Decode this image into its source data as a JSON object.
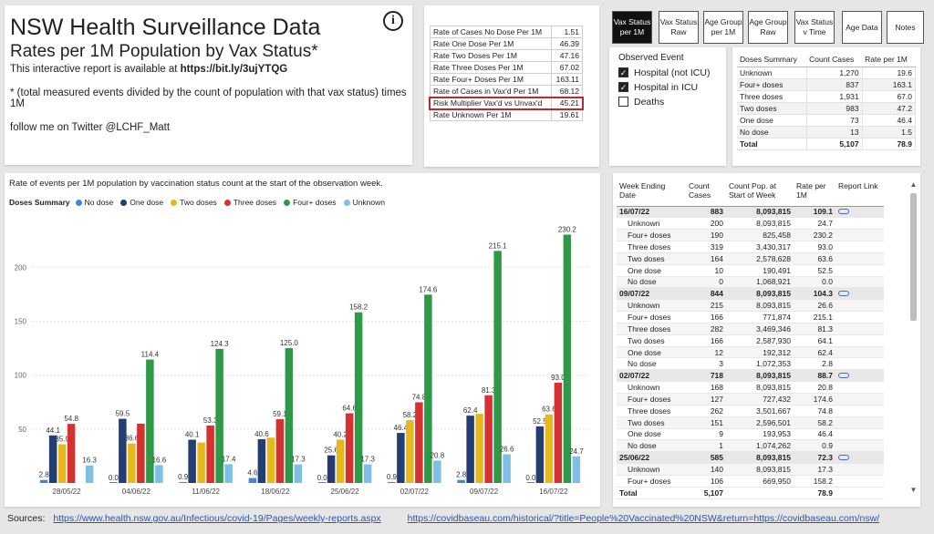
{
  "header": {
    "title": "NSW Health Surveillance Data",
    "subtitle": "Rates per 1M Population by Vax Status*",
    "report_prefix": "This interactive report is available at",
    "report_link": "https://bit.ly/3ujYTQG",
    "footnote": "* (total measured events divided by the count of population with that vax status) times 1M",
    "twitter": "follow me on Twitter @LCHF_Matt",
    "info_icon": "i"
  },
  "rates": [
    {
      "label": "Rate of Cases No Dose Per 1M",
      "value": "1.51"
    },
    {
      "label": "Rate One Dose Per 1M",
      "value": "46.39"
    },
    {
      "label": "Rate Two Doses Per 1M",
      "value": "47.16"
    },
    {
      "label": "Rate Three Doses Per 1M",
      "value": "67.02"
    },
    {
      "label": "Rate Four+ Doses Per 1M",
      "value": "163.11"
    },
    {
      "label": "Rate of Cases in Vax'd Per 1M",
      "value": "68.12"
    },
    {
      "label": "Risk Multiplier Vax'd vs Unvax'd",
      "value": "45.21",
      "highlight": true
    },
    {
      "label": "Rate Unknown Per 1M",
      "value": "19.61"
    }
  ],
  "nav": [
    {
      "label": "Vax Status per 1M",
      "active": true
    },
    {
      "label": "Vax Status Raw",
      "active": false
    },
    {
      "label": "Age Group per 1M",
      "active": false
    },
    {
      "label": "Age Group Raw",
      "active": false
    },
    {
      "label": "Vax Status v Time",
      "active": false
    },
    {
      "label": "Age Data",
      "active": false
    },
    {
      "label": "Notes",
      "active": false
    }
  ],
  "observed": {
    "label": "Observed Event",
    "options": [
      {
        "label": "Hospital (not ICU)",
        "checked": true
      },
      {
        "label": "Hospital in ICU",
        "checked": true
      },
      {
        "label": "Deaths",
        "checked": false
      }
    ],
    "check_glyph": "✓"
  },
  "doses_summary": {
    "headers": [
      "Doses Summary",
      "Count Cases",
      "Rate per 1M"
    ],
    "rows": [
      [
        "Unknown",
        "1,270",
        "19.6"
      ],
      [
        "Four+ doses",
        "837",
        "163.1"
      ],
      [
        "Three doses",
        "1,931",
        "67.0"
      ],
      [
        "Two doses",
        "983",
        "47.2"
      ],
      [
        "One dose",
        "73",
        "46.4"
      ],
      [
        "No dose",
        "13",
        "1.5"
      ]
    ],
    "total": [
      "Total",
      "5,107",
      "78.9"
    ]
  },
  "chart_title": "Rate of events per 1M population by vaccination status count at the start of the observation week.",
  "legend_title": "Doses Summary",
  "colors": {
    "No dose": "#3c8ad6",
    "One dose": "#253d73",
    "Two doses": "#e6b81e",
    "Three doses": "#d63131",
    "Four+ doses": "#2e9a47",
    "Unknown": "#7fbfe6"
  },
  "chart_data": {
    "type": "bar",
    "title": "Rate of events per 1M population by vaccination status count at the start of the observation week.",
    "categories": [
      "28/05/22",
      "04/06/22",
      "11/06/22",
      "18/06/22",
      "25/06/22",
      "02/07/22",
      "09/07/22",
      "16/07/22"
    ],
    "series": [
      {
        "name": "No dose",
        "values": [
          2.8,
          0.0,
          0.9,
          4.6,
          0.0,
          0.9,
          2.8,
          0.0
        ],
        "labels": [
          "2.8",
          "0.0",
          "0.9",
          "4.6",
          "0.0",
          "0.9",
          "2.8",
          "0.0"
        ]
      },
      {
        "name": "One dose",
        "values": [
          44.1,
          59.5,
          40.1,
          40.6,
          25.6,
          46.4,
          62.4,
          52.5
        ],
        "labels": [
          "44.1",
          "59.5",
          "40.1",
          "40.6",
          "25.6",
          "46.4",
          "62.4",
          "52.5"
        ]
      },
      {
        "name": "Two doses",
        "values": [
          35.9,
          36.6,
          37.5,
          42.0,
          40.2,
          58.2,
          64.1,
          63.6
        ],
        "labels": [
          "35.9",
          "36.6",
          "",
          "",
          "40.2",
          "58.2",
          "",
          "63.6"
        ]
      },
      {
        "name": "Three doses",
        "values": [
          54.8,
          55.0,
          53.3,
          59.1,
          64.6,
          74.8,
          81.3,
          93.0
        ],
        "labels": [
          "54.8",
          "",
          "53.3",
          "59.1",
          "64.6",
          "74.8",
          "81.3",
          "93.0"
        ]
      },
      {
        "name": "Four+ doses",
        "values": [
          0,
          114.4,
          124.3,
          125.0,
          158.2,
          174.6,
          215.1,
          230.2
        ],
        "labels": [
          "",
          "114.4",
          "124.3",
          "125.0",
          "158.2",
          "174.6",
          "215.1",
          "230.2"
        ]
      },
      {
        "name": "Unknown",
        "values": [
          16.3,
          16.6,
          17.4,
          17.3,
          17.3,
          20.8,
          26.6,
          24.7
        ],
        "labels": [
          "16.3",
          "16.6",
          "17.4",
          "17.3",
          "17.3",
          "20.8",
          "26.6",
          "24.7"
        ]
      }
    ],
    "yticks": [
      50,
      100,
      150,
      200
    ],
    "ylim": [
      0,
      245
    ]
  },
  "weekly": {
    "headers": [
      "Week Ending Date",
      "Count Cases",
      "Count Pop. at Start of Week",
      "Rate per 1M",
      "Report Link"
    ],
    "groups": [
      {
        "week": "16/07/22",
        "cases": "883",
        "pop": "8,093,815",
        "rate": "109.1",
        "link": true,
        "rows": [
          [
            "Unknown",
            "200",
            "8,093,815",
            "24.7"
          ],
          [
            "Four+ doses",
            "190",
            "825,458",
            "230.2"
          ],
          [
            "Three doses",
            "319",
            "3,430,317",
            "93.0"
          ],
          [
            "Two doses",
            "164",
            "2,578,628",
            "63.6"
          ],
          [
            "One dose",
            "10",
            "190,491",
            "52.5"
          ],
          [
            "No dose",
            "0",
            "1,068,921",
            "0.0"
          ]
        ]
      },
      {
        "week": "09/07/22",
        "cases": "844",
        "pop": "8,093,815",
        "rate": "104.3",
        "link": true,
        "rows": [
          [
            "Unknown",
            "215",
            "8,093,815",
            "26.6"
          ],
          [
            "Four+ doses",
            "166",
            "771,874",
            "215.1"
          ],
          [
            "Three doses",
            "282",
            "3,469,346",
            "81.3"
          ],
          [
            "Two doses",
            "166",
            "2,587,930",
            "64.1"
          ],
          [
            "One dose",
            "12",
            "192,312",
            "62.4"
          ],
          [
            "No dose",
            "3",
            "1,072,353",
            "2.8"
          ]
        ]
      },
      {
        "week": "02/07/22",
        "cases": "718",
        "pop": "8,093,815",
        "rate": "88.7",
        "link": true,
        "rows": [
          [
            "Unknown",
            "168",
            "8,093,815",
            "20.8"
          ],
          [
            "Four+ doses",
            "127",
            "727,432",
            "174.6"
          ],
          [
            "Three doses",
            "262",
            "3,501,667",
            "74.8"
          ],
          [
            "Two doses",
            "151",
            "2,596,501",
            "58.2"
          ],
          [
            "One dose",
            "9",
            "193,953",
            "46.4"
          ],
          [
            "No dose",
            "1",
            "1,074,262",
            "0.9"
          ]
        ]
      },
      {
        "week": "25/06/22",
        "cases": "585",
        "pop": "8,093,815",
        "rate": "72.3",
        "link": true,
        "rows": [
          [
            "Unknown",
            "140",
            "8,093,815",
            "17.3"
          ],
          [
            "Four+ doses",
            "106",
            "669,950",
            "158.2"
          ]
        ]
      }
    ],
    "total": [
      "Total",
      "5,107",
      "",
      "78.9"
    ],
    "scroll_up": "▲",
    "scroll_down": "▼"
  },
  "sources": {
    "label": "Sources:",
    "link1": "https://www.health.nsw.gov.au/Infectious/covid-19/Pages/weekly-reports.aspx",
    "link2": "https://covidbaseau.com/historical/?title=People%20Vaccinated%20NSW&return=https://covidbaseau.com/nsw/"
  }
}
